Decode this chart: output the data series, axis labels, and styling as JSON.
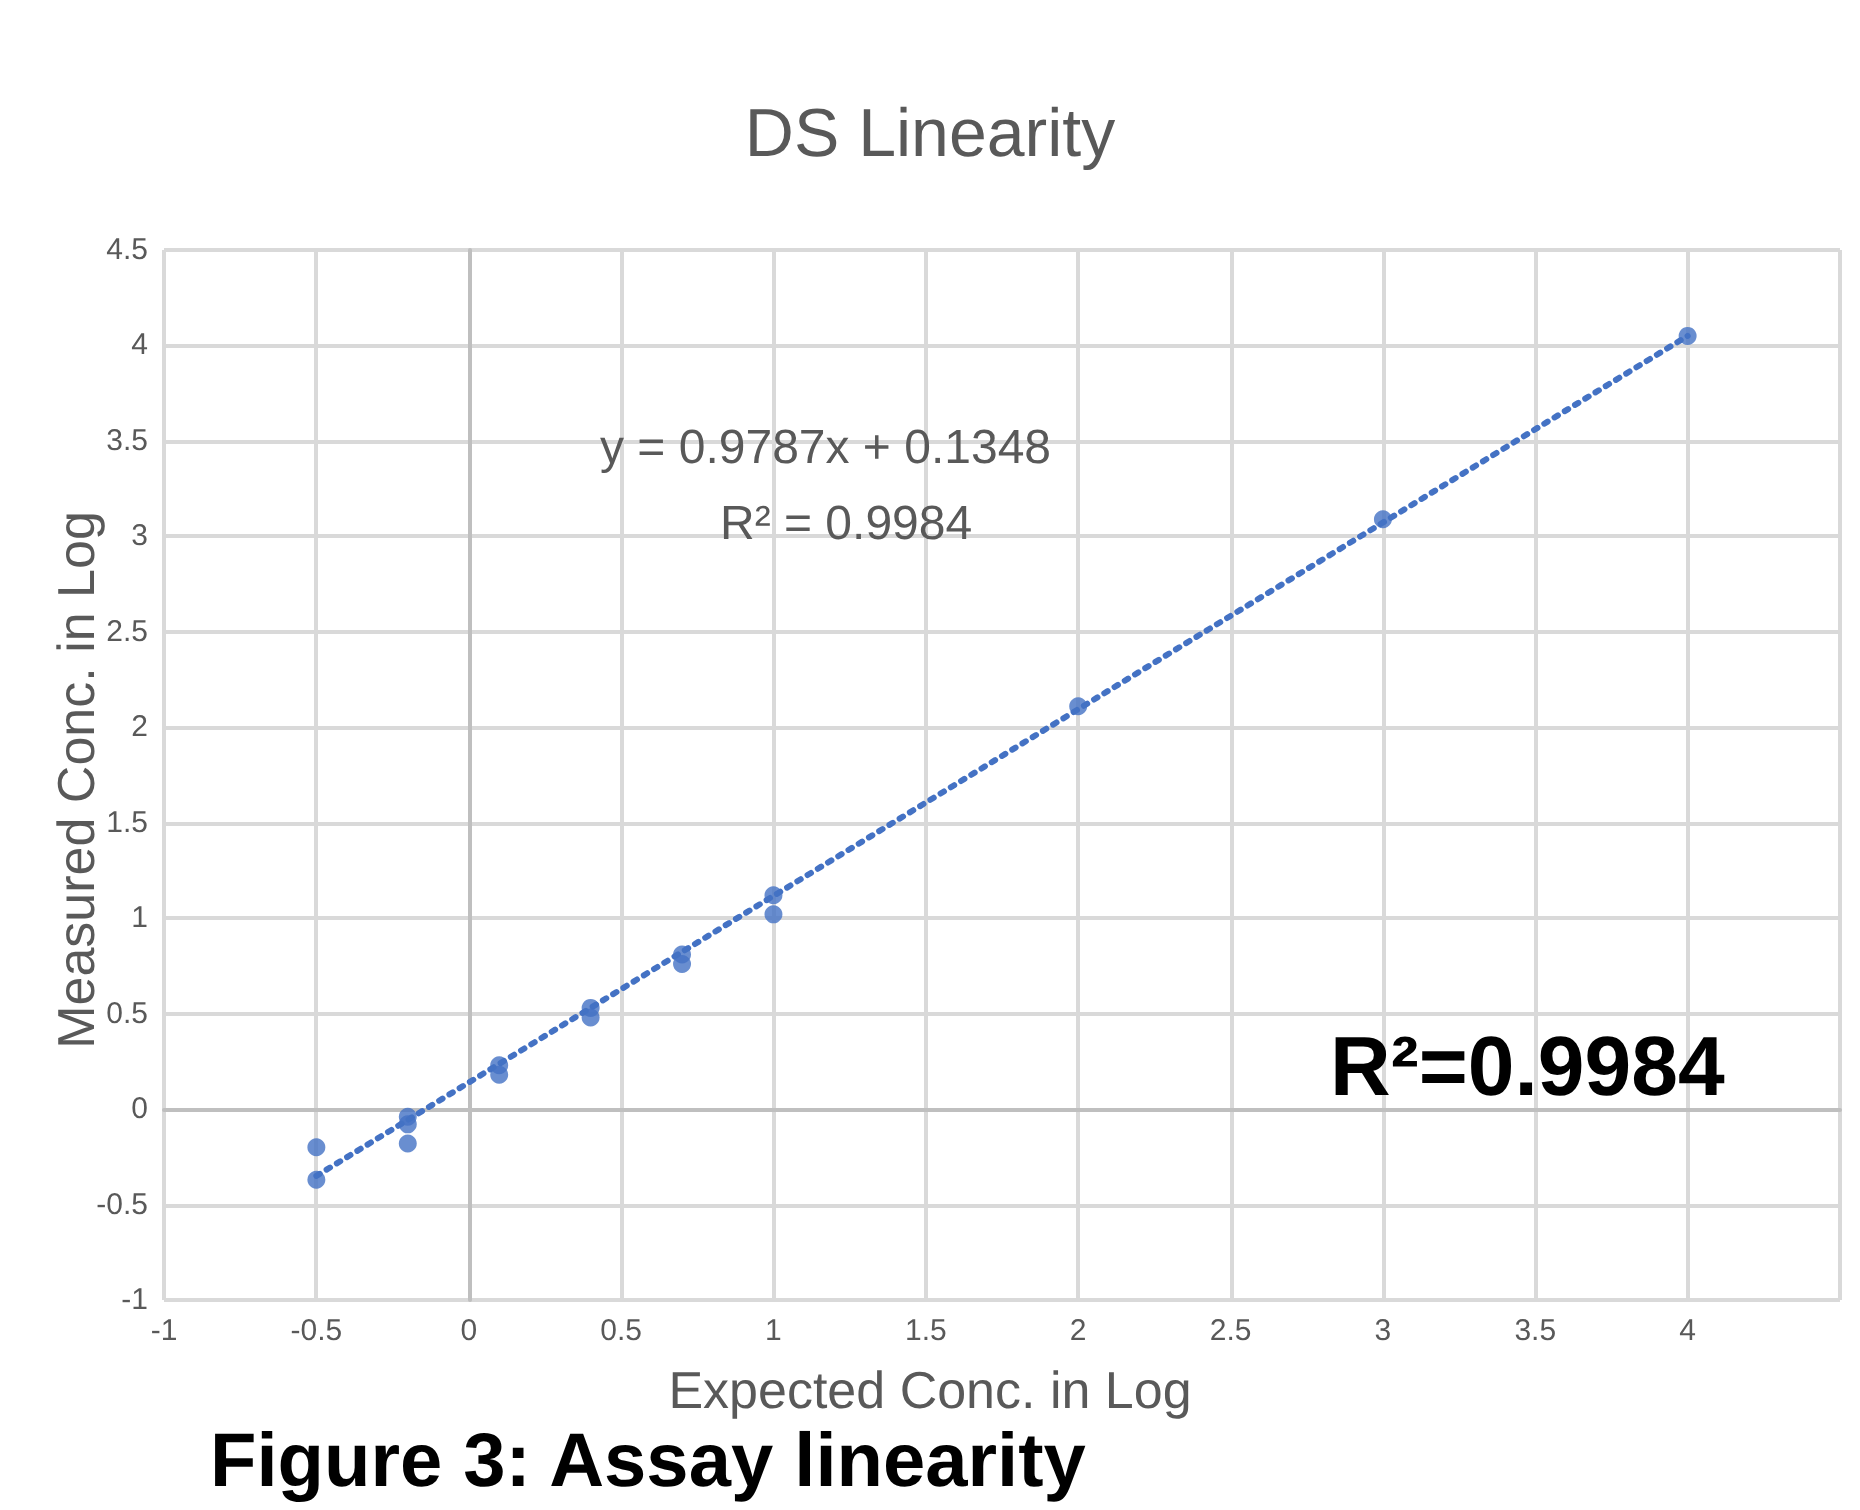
{
  "chart_data": {
    "type": "scatter",
    "title": "DS Linearity",
    "xlabel": "Expected Conc. in Log",
    "ylabel": "Measured Conc. in Log",
    "xlim": [
      -1,
      4.5
    ],
    "xticks": [
      -1,
      -0.5,
      0,
      0.5,
      1,
      1.5,
      2,
      2.5,
      3,
      3.5,
      4,
      {
        "value": 4.5,
        "label": null
      }
    ],
    "ylim": [
      -1,
      4.5
    ],
    "yticks": [
      -1,
      -0.5,
      0,
      0.5,
      1,
      1.5,
      2,
      2.5,
      3,
      3.5,
      4,
      4.5
    ],
    "grid": true,
    "marker": "circle",
    "series": [
      {
        "color": "#4472c4",
        "x": [
          -0.5,
          -0.5,
          -0.2,
          -0.2,
          -0.2,
          0.1,
          0.1,
          0.4,
          0.4,
          0.7,
          0.7,
          1,
          1,
          2,
          3,
          4
        ],
        "values": [
          -0.2,
          -0.37,
          -0.04,
          -0.08,
          -0.18,
          0.23,
          0.18,
          0.53,
          0.48,
          0.81,
          0.76,
          1.12,
          1.02,
          2.11,
          3.09,
          4.05
        ]
      },
      {
        "type": "line",
        "color": "#4472c4",
        "line_style": "dotted",
        "marker": "none",
        "x": [
          -0.5,
          4
        ],
        "values": [
          -0.35,
          4.05
        ]
      }
    ],
    "annotations": [
      "y = 0.9787x + 0.1348",
      "R² = 0.9984",
      "R²=0.9984",
      "Figure 3: Assay linearity"
    ]
  }
}
